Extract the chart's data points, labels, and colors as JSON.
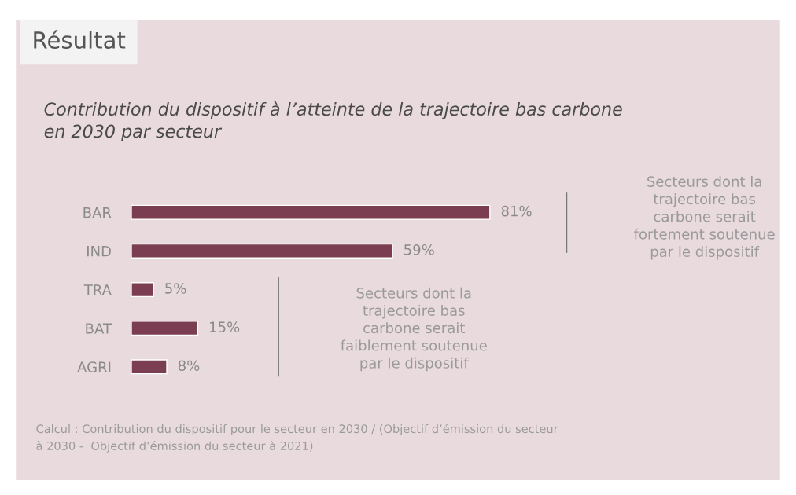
{
  "chart_data": {
    "type": "bar",
    "orientation": "horizontal",
    "title": "Résultat",
    "subtitle": "Contribution du dispositif à l’atteinte de la trajectoire bas carbone\nen 2030 par secteur",
    "categories": [
      "BAR",
      "IND",
      "TRA",
      "BAT",
      "AGRI"
    ],
    "values": [
      81,
      59,
      5,
      15,
      8
    ],
    "color": "#7a3d52",
    "value_labels": [
      "81%",
      "59%",
      "5%",
      "15%",
      "8%"
    ],
    "annotations": [
      "Secteurs dont la\ntrajectoire bas\ncarbone serait\nfortement soutenue\npar le dispositif",
      "Secteurs dont la\ntrajectoire bas\ncarbone serait\nfaiblement soutenue\npar le dispositif",
      "Calcul : Contribution du dispositif pour le secteur en 2030 / (Objectif d’émission du secteur\nà 2030 -  Objectif d’émission du secteur à 2021)"
    ],
    "grid": false,
    "legend": false
  }
}
